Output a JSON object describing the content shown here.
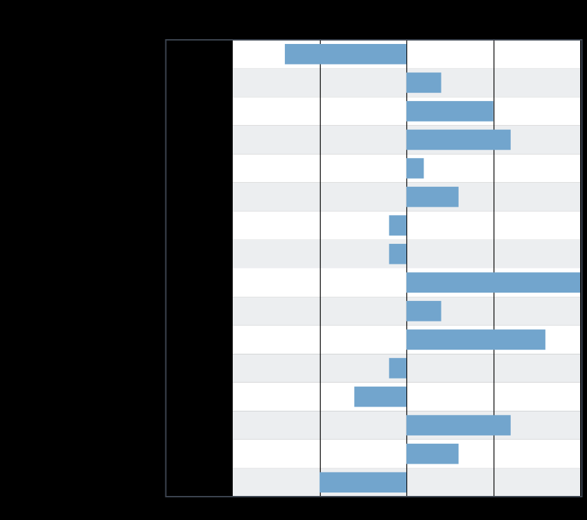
{
  "colors": {
    "background": "#000000",
    "band_light": "#ffffff",
    "band_shaded": "#eceef0",
    "bar": "#72a5cd",
    "gridline": "#000000",
    "frame": "#3c4450",
    "label_gutter": "#000000"
  },
  "chart_data": {
    "type": "bar",
    "orientation": "horizontal",
    "title": "",
    "xlabel": "",
    "ylabel": "",
    "categories": [
      "",
      "",
      "",
      "",
      "",
      "",
      "",
      "",
      "",
      "",
      "",
      "",
      "",
      "",
      "",
      ""
    ],
    "values": [
      -7,
      2,
      5,
      6,
      1,
      3,
      -1,
      -1,
      10,
      2,
      8,
      -1,
      -3,
      6,
      3,
      -5
    ],
    "xlim": [
      -10,
      10
    ],
    "gridlines_at": [
      -5,
      0,
      5
    ],
    "alternating_row_bands": true,
    "grid": true,
    "legend": "none"
  }
}
